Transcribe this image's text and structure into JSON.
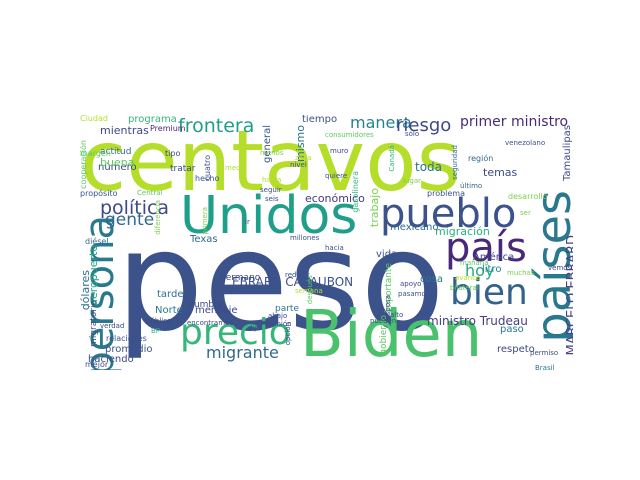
{
  "cloud": {
    "words": [
      {
        "t": "peso",
        "c": "#3b528b"
      },
      {
        "t": "centavos",
        "c": "#b5de2b"
      },
      {
        "t": "Biden",
        "c": "#4ac16d"
      },
      {
        "t": "Unidos",
        "c": "#1f9e89"
      },
      {
        "t": "pueblo",
        "c": "#3b528b"
      },
      {
        "t": "país",
        "c": "#482878"
      },
      {
        "t": "países",
        "c": "#2a788e"
      },
      {
        "t": "persona",
        "c": "#2a788e"
      },
      {
        "t": "precio",
        "c": "#35b779"
      },
      {
        "t": "bien",
        "c": "#33638d"
      },
      {
        "t": "frontera",
        "c": "#1f9e89"
      },
      {
        "t": "política",
        "c": "#3e4989"
      },
      {
        "t": "gente",
        "c": "#31688e"
      },
      {
        "t": "manera",
        "c": "#26828e"
      },
      {
        "t": "riesgo",
        "c": "#3e4989"
      },
      {
        "t": "primer ministro",
        "c": "#472c7a"
      },
      {
        "t": "migrante",
        "c": "#31688e"
      },
      {
        "t": "hoy",
        "c": "#22a884"
      },
      {
        "t": "MARCELO EBRARD",
        "c": "#414487"
      },
      {
        "t": "EBRARD CASAUBON",
        "c": "#3b528b"
      },
      {
        "t": "ministro Trudeau",
        "c": "#433e85"
      },
      {
        "t": "migración",
        "c": "#2ab07f"
      },
      {
        "t": "mexicano",
        "c": "#31688e"
      },
      {
        "t": "Tamaulipas",
        "c": "#3e4989"
      },
      {
        "t": "toda",
        "c": "#2c728e"
      },
      {
        "t": "económico",
        "c": "#443983"
      },
      {
        "t": "general",
        "c": "#38588c"
      },
      {
        "t": "mismo",
        "c": "#2c728e"
      },
      {
        "t": "tiempo",
        "c": "#3b528b"
      },
      {
        "t": "mientras",
        "c": "#3e4989"
      },
      {
        "t": "programa",
        "c": "#35b779"
      },
      {
        "t": "número",
        "c": "#3e4989"
      },
      {
        "t": "buena",
        "c": "#5ec962"
      },
      {
        "t": "trabajo",
        "c": "#7ad151"
      },
      {
        "t": "vida",
        "c": "#3b528b"
      },
      {
        "t": "América",
        "c": "#3e4989"
      },
      {
        "t": "litro",
        "c": "#26828e"
      },
      {
        "t": "temas",
        "c": "#3e4989"
      },
      {
        "t": "cosa",
        "c": "#2a788e"
      },
      {
        "t": "dólares",
        "c": "#2c728e"
      },
      {
        "t": "aeropuerto",
        "c": "#22a884"
      },
      {
        "t": "migratorio",
        "c": "#3b528b"
      },
      {
        "t": "Texas",
        "c": "#31688e"
      },
      {
        "t": "tarde",
        "c": "#2c728e"
      },
      {
        "t": "Norte",
        "c": "#2a788e"
      },
      {
        "t": "mensaje",
        "c": "#3e4989"
      },
      {
        "t": "cumbre",
        "c": "#3e4989"
      },
      {
        "t": "promedio",
        "c": "#3b528b"
      },
      {
        "t": "haciendo",
        "c": "#3e4989"
      },
      {
        "t": "respeto",
        "c": "#3e4989"
      },
      {
        "t": "paso",
        "c": "#2a788e"
      },
      {
        "t": "gobierno",
        "c": "#5ec962"
      },
      {
        "t": "importante",
        "c": "#5ec962"
      },
      {
        "t": "actitud",
        "c": "#31688e"
      },
      {
        "t": "tratar",
        "c": "#3e4989"
      },
      {
        "t": "hecho",
        "c": "#3b528b"
      },
      {
        "t": "hermano",
        "c": "#3e4989"
      },
      {
        "t": "parte",
        "c": "#2a788e"
      },
      {
        "t": "región",
        "c": "#31688e"
      },
      {
        "t": "desarrollo",
        "c": "#7ad151"
      },
      {
        "t": "problema",
        "c": "#3b528b"
      },
      {
        "t": "propósito",
        "c": "#3b528b"
      },
      {
        "t": "diésel",
        "c": "#31688e"
      },
      {
        "t": "mejor",
        "c": "#3b528b"
      },
      {
        "t": "Ciudad",
        "c": "#b5de2b"
      },
      {
        "t": "Premium",
        "c": "#482878"
      },
      {
        "t": "cooperación",
        "c": "#5ec962"
      },
      {
        "t": "margen",
        "c": "#5ec962"
      },
      {
        "t": "tipo",
        "c": "#3e4989"
      },
      {
        "t": "cuatro",
        "c": "#3b528b"
      },
      {
        "t": "medio",
        "c": "#b5de2b"
      },
      {
        "t": "menos",
        "c": "#7ad151"
      },
      {
        "t": "zona",
        "c": "#b5de2b"
      },
      {
        "t": "muro",
        "c": "#3e4989"
      },
      {
        "t": "nivel",
        "c": "#3b528b"
      },
      {
        "t": "quiere",
        "c": "#3b528b"
      },
      {
        "t": "consumidores",
        "c": "#5ec962"
      },
      {
        "t": "sólo",
        "c": "#3e4989"
      },
      {
        "t": "gasolinera",
        "c": "#35b779"
      },
      {
        "t": "lugar",
        "c": "#7ad151"
      },
      {
        "t": "Canadá",
        "c": "#35b779"
      },
      {
        "t": "seguridad",
        "c": "#31688e"
      },
      {
        "t": "venezolano",
        "c": "#3b528b"
      },
      {
        "t": "último",
        "c": "#31688e"
      },
      {
        "t": "seguir",
        "c": "#3e4989"
      },
      {
        "t": "seis",
        "c": "#3e4989"
      },
      {
        "t": "habla",
        "c": "#b5de2b"
      },
      {
        "t": "Central",
        "c": "#5ec962"
      },
      {
        "t": "diferencia",
        "c": "#7ad151"
      },
      {
        "t": "primera",
        "c": "#7ad151"
      },
      {
        "t": "millones",
        "c": "#3b528b"
      },
      {
        "t": "dar",
        "c": "#3b528b"
      },
      {
        "t": "lr",
        "c": "#3e4989"
      },
      {
        "t": "hacia",
        "c": "#3b528b"
      },
      {
        "t": "reducir",
        "c": "#3b528b"
      },
      {
        "t": "después",
        "c": "#5ec962"
      },
      {
        "t": "semana",
        "c": "#b5de2b"
      },
      {
        "t": "encontramos",
        "c": "#3e4989"
      },
      {
        "t": "reunión",
        "c": "#3e4989"
      },
      {
        "t": "abajo",
        "c": "#3e4989"
      },
      {
        "t": "dijo",
        "c": "#3b528b"
      },
      {
        "t": "esposa",
        "c": "#3e4989"
      },
      {
        "t": "pueden",
        "c": "#3b528b"
      },
      {
        "t": "alto",
        "c": "#3e4989"
      },
      {
        "t": "apoyo",
        "c": "#3e4989"
      },
      {
        "t": "pasamos",
        "c": "#3b528b"
      },
      {
        "t": "bilateral",
        "c": "#5ec962"
      },
      {
        "t": "avance",
        "c": "#b5de2b"
      },
      {
        "t": "mañana",
        "c": "#5ec962"
      },
      {
        "t": "muchas",
        "c": "#7ad151"
      },
      {
        "t": "vemos",
        "c": "#3e4989"
      },
      {
        "t": "punto",
        "c": "#3e4989"
      },
      {
        "t": "permiso",
        "c": "#3e4989"
      },
      {
        "t": "Brasil",
        "c": "#2a788e"
      },
      {
        "t": "opción",
        "c": "#3e4989"
      },
      {
        "t": "relaciones",
        "c": "#3b528b"
      },
      {
        "t": "verdad",
        "c": "#3e4989"
      },
      {
        "t": "público",
        "c": "#3e4989"
      },
      {
        "t": "BP",
        "c": "#2ab07f"
      },
      {
        "t": "ser",
        "c": "#7ad151"
      }
    ]
  }
}
